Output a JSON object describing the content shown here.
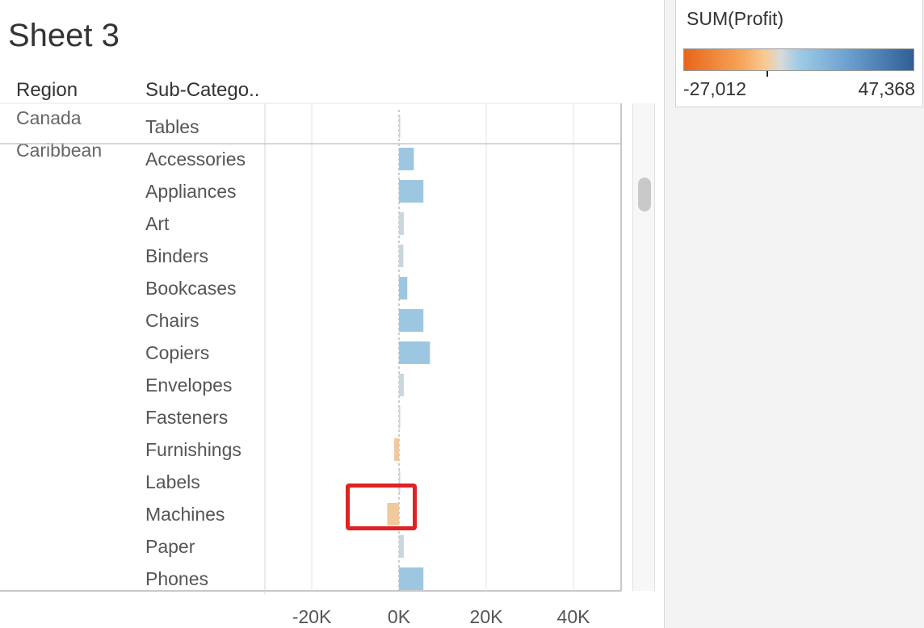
{
  "sheet": {
    "title": "Sheet 3"
  },
  "columns": {
    "region": "Region",
    "subcategory": "Sub-Catego.."
  },
  "legend": {
    "title": "SUM(Profit)",
    "min_label": "-27,012",
    "max_label": "47,368"
  },
  "colors": {
    "positive": "#9dc7e0",
    "small_positive": "#c9d6db",
    "negative": "#f0c99c",
    "grid": "#e6e6e6",
    "zero_line": "#bbbbbb"
  },
  "chart_data": {
    "type": "bar",
    "orientation": "horizontal",
    "x_ticks": [
      "-20K",
      "0K",
      "20K",
      "40K"
    ],
    "x_tick_values": [
      -20000,
      0,
      20000,
      40000
    ],
    "xlim": [
      -30000,
      51000
    ],
    "groups": [
      {
        "region": "Canada",
        "rows": [
          {
            "subcategory": "Tables",
            "value": 100
          }
        ]
      },
      {
        "region": "Caribbean",
        "rows": [
          {
            "subcategory": "Accessories",
            "value": 3400
          },
          {
            "subcategory": "Appliances",
            "value": 5600
          },
          {
            "subcategory": "Art",
            "value": 1100
          },
          {
            "subcategory": "Binders",
            "value": 1000
          },
          {
            "subcategory": "Bookcases",
            "value": 1900
          },
          {
            "subcategory": "Chairs",
            "value": 5600
          },
          {
            "subcategory": "Copiers",
            "value": 7100
          },
          {
            "subcategory": "Envelopes",
            "value": 1100
          },
          {
            "subcategory": "Fasteners",
            "value": 200
          },
          {
            "subcategory": "Furnishings",
            "value": -1100
          },
          {
            "subcategory": "Labels",
            "value": 100
          },
          {
            "subcategory": "Machines",
            "value": -2700
          },
          {
            "subcategory": "Paper",
            "value": 1100
          },
          {
            "subcategory": "Phones",
            "value": 5600
          }
        ]
      }
    ]
  }
}
